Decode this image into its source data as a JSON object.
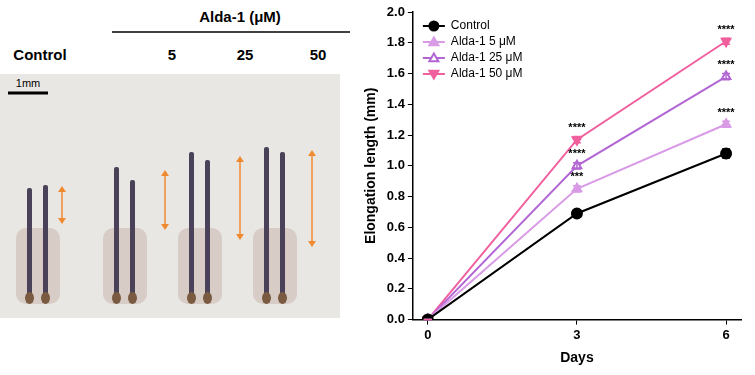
{
  "image_panel": {
    "header": "Alda-1 (μM)",
    "columns": [
      "Control",
      "5",
      "25",
      "50"
    ],
    "scale_bar": "1mm"
  },
  "chart_data": {
    "type": "line",
    "x_label": "Days",
    "y_label": "Elongation length (mm)",
    "x": [
      0,
      3,
      6
    ],
    "series": [
      {
        "name": "Control",
        "color": "#000000",
        "marker": "circle",
        "values": [
          0,
          0.69,
          1.08
        ],
        "errors": [
          0,
          0.02,
          0.03
        ]
      },
      {
        "name": "Alda-1 5 μM",
        "color": "#d99be6",
        "marker": "triangle",
        "values": [
          0,
          0.85,
          1.27
        ],
        "errors": [
          0,
          0.02,
          0.02
        ],
        "significance": [
          null,
          "***",
          "****"
        ]
      },
      {
        "name": "Alda-1 25 μM",
        "color": "#b266d4",
        "marker": "triangle_open",
        "values": [
          0,
          1.0,
          1.58
        ],
        "errors": [
          0,
          0.02,
          0.02
        ],
        "significance": [
          null,
          "****",
          "****"
        ]
      },
      {
        "name": "Alda-1 50 μM",
        "color": "#f0609e",
        "marker": "triangle_down",
        "values": [
          0,
          1.17,
          1.81
        ],
        "errors": [
          0,
          0.02,
          0.02
        ],
        "significance": [
          null,
          "****",
          "****"
        ]
      }
    ],
    "xlim": [
      -0.3,
      6.3
    ],
    "xticks": [
      0,
      3,
      6
    ],
    "ylim": [
      0,
      2.0
    ],
    "yticks": [
      {
        "value": 0,
        "label": "0.0"
      },
      {
        "value": 0.2,
        "label": "0.2"
      },
      {
        "value": 0.4,
        "label": "0.4"
      },
      {
        "value": 0.6,
        "label": "0.6"
      },
      {
        "value": 0.8,
        "label": "0.8"
      },
      {
        "value": 1.0,
        "label": "1.0"
      },
      {
        "value": 1.2,
        "label": "1.2"
      },
      {
        "value": 1.4,
        "label": "1.4"
      },
      {
        "value": 1.6,
        "label": "1.6"
      },
      {
        "value": 1.8,
        "label": "1.8"
      },
      {
        "value": 2.0,
        "label": "2.0"
      }
    ],
    "grid": false,
    "legend": "top-left"
  }
}
